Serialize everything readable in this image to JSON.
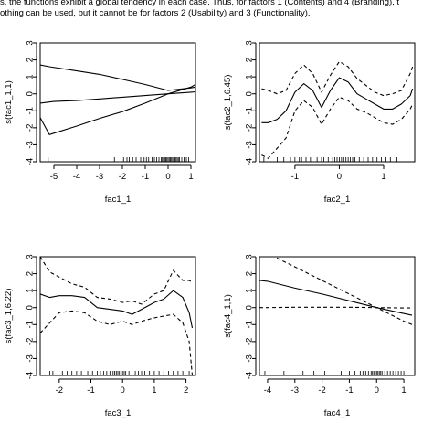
{
  "caption": {
    "line1": "s, the functions exhibit a global tendency in each case. Thus, for factors 1 (Contents) and 4 (Branding), t",
    "line2": "othing can be used, but it cannot be for factors 2 (Usability) and 3 (Functionality)."
  },
  "chart_data": [
    {
      "type": "line",
      "xlabel": "fac1_1",
      "ylabel": "s(fac1_1,1)",
      "xlim": [
        -5.6,
        1.2
      ],
      "ylim": [
        -4,
        3
      ],
      "xticks": [
        -5,
        -4,
        -3,
        -2,
        -1,
        0,
        1
      ],
      "yticks": [
        -4,
        -3,
        -2,
        -1,
        0,
        1,
        2,
        3
      ],
      "series": [
        {
          "style": "solid",
          "x": [
            -5.6,
            -5.2,
            -4,
            -3,
            -2,
            -1,
            0,
            1,
            1.2
          ],
          "y": [
            1.7,
            1.6,
            1.35,
            1.15,
            0.85,
            0.55,
            0.2,
            0.35,
            0.4
          ]
        },
        {
          "style": "solid",
          "x": [
            -5.6,
            -5.2,
            -4,
            -3,
            -2,
            -1,
            0,
            1,
            1.2
          ],
          "y": [
            -1.4,
            -2.4,
            -1.9,
            -1.45,
            -1.05,
            -0.55,
            0,
            0.4,
            0.55
          ]
        },
        {
          "style": "solid",
          "x": [
            -5.6,
            -5,
            -4,
            -3,
            -2,
            -1,
            0,
            1,
            1.2
          ],
          "y": [
            -0.55,
            -0.45,
            -0.4,
            -0.3,
            -0.2,
            -0.1,
            0,
            0.1,
            0.12
          ]
        }
      ],
      "rug": [
        -5.25,
        -2.35,
        -1.95,
        -1.8,
        -1.7,
        -1.55,
        -1.4,
        -1.2,
        -1.05,
        -0.95,
        -0.85,
        -0.7,
        -0.6,
        -0.5,
        -0.4,
        -0.3,
        -0.25,
        -0.2,
        -0.15,
        -0.1,
        -0.05,
        0,
        0.05,
        0.1,
        0.15,
        0.2,
        0.25,
        0.3,
        0.35,
        0.4,
        0.45,
        0.5,
        0.6,
        0.7,
        0.8,
        0.9
      ]
    },
    {
      "type": "line",
      "xlabel": "fac2_1",
      "ylabel": "s(fac2_1,6.45)",
      "xlim": [
        -1.8,
        1.7
      ],
      "ylim": [
        -4,
        3
      ],
      "xticks": [
        -1,
        0,
        1
      ],
      "yticks": [
        -4,
        -3,
        -2,
        -1,
        0,
        1,
        2,
        3
      ],
      "series": [
        {
          "style": "dashed",
          "x": [
            -1.75,
            -1.6,
            -1.4,
            -1.2,
            -1.0,
            -0.8,
            -0.6,
            -0.4,
            -0.2,
            0,
            0.2,
            0.4,
            0.6,
            0.8,
            1.0,
            1.2,
            1.4,
            1.6,
            1.65
          ],
          "y": [
            0.3,
            0.2,
            0.0,
            0.2,
            1.2,
            1.7,
            1.2,
            0.1,
            1.1,
            1.9,
            1.6,
            0.9,
            0.5,
            0.1,
            -0.1,
            0.0,
            0.2,
            1.2,
            1.6
          ]
        },
        {
          "style": "dashed",
          "x": [
            -1.75,
            -1.6,
            -1.4,
            -1.2,
            -1.0,
            -0.8,
            -0.6,
            -0.4,
            -0.2,
            0,
            0.2,
            0.4,
            0.6,
            0.8,
            1.0,
            1.2,
            1.4,
            1.6,
            1.65
          ],
          "y": [
            -3.6,
            -3.8,
            -3.2,
            -2.6,
            -1.0,
            -0.4,
            -0.8,
            -1.8,
            -0.9,
            -0.2,
            -0.4,
            -0.9,
            -1.1,
            -1.4,
            -1.7,
            -1.8,
            -1.5,
            -0.9,
            -0.6
          ]
        },
        {
          "style": "solid",
          "x": [
            -1.75,
            -1.6,
            -1.4,
            -1.2,
            -1.0,
            -0.8,
            -0.6,
            -0.4,
            -0.2,
            0,
            0.2,
            0.4,
            0.6,
            0.8,
            1.0,
            1.2,
            1.4,
            1.6,
            1.65
          ],
          "y": [
            -1.7,
            -1.7,
            -1.5,
            -1.0,
            0.1,
            0.6,
            0.2,
            -0.8,
            0.2,
            0.95,
            0.7,
            0.0,
            -0.3,
            -0.6,
            -0.9,
            -0.9,
            -0.6,
            -0.1,
            0.3
          ]
        }
      ],
      "rug": [
        -1.7,
        -1.4,
        -1.25,
        -1.1,
        -1.0,
        -0.9,
        -0.85,
        -0.75,
        -0.65,
        -0.5,
        -0.4,
        -0.35,
        -0.25,
        -0.15,
        -0.1,
        -0.05,
        0,
        0.05,
        0.1,
        0.15,
        0.2,
        0.25,
        0.3,
        0.35,
        0.45,
        0.55,
        0.65,
        0.75,
        0.85,
        0.95,
        1.05,
        1.15,
        1.3
      ]
    },
    {
      "type": "line",
      "xlabel": "fac3_1",
      "ylabel": "s(fac3_1,6.22)",
      "xlim": [
        -2.6,
        2.3
      ],
      "ylim": [
        -4,
        3
      ],
      "xticks": [
        -2,
        -1,
        0,
        1,
        2
      ],
      "yticks": [
        -4,
        -3,
        -2,
        -1,
        0,
        1,
        2,
        3
      ],
      "series": [
        {
          "style": "dashed",
          "x": [
            -2.6,
            -2.3,
            -2.0,
            -1.6,
            -1.2,
            -0.8,
            -0.4,
            0,
            0.3,
            0.6,
            1.0,
            1.3,
            1.6,
            1.9,
            2.1,
            2.2
          ],
          "y": [
            3.0,
            2.1,
            1.8,
            1.4,
            1.2,
            0.6,
            0.5,
            0.3,
            0.4,
            0.2,
            0.8,
            1.0,
            2.2,
            1.6,
            1.6,
            1.5
          ]
        },
        {
          "style": "dashed",
          "x": [
            -2.6,
            -2.3,
            -2.0,
            -1.6,
            -1.2,
            -0.8,
            -0.4,
            0,
            0.3,
            0.6,
            1.0,
            1.3,
            1.6,
            1.9,
            2.1,
            2.2
          ],
          "y": [
            -1.5,
            -0.9,
            -0.3,
            -0.2,
            -0.3,
            -0.8,
            -1.0,
            -0.8,
            -1.0,
            -0.8,
            -0.6,
            -0.5,
            -0.4,
            -0.9,
            -2.0,
            -4.0
          ]
        },
        {
          "style": "solid",
          "x": [
            -2.6,
            -2.3,
            -2.0,
            -1.6,
            -1.2,
            -0.8,
            -0.4,
            0,
            0.3,
            0.6,
            1.0,
            1.3,
            1.6,
            1.9,
            2.1,
            2.2
          ],
          "y": [
            0.8,
            0.6,
            0.7,
            0.7,
            0.6,
            0.0,
            -0.1,
            -0.2,
            -0.4,
            -0.1,
            0.3,
            0.5,
            1.0,
            0.6,
            -0.3,
            -1.2
          ]
        }
      ],
      "rug": [
        -2.3,
        -2.2,
        -1.9,
        -1.75,
        -1.6,
        -1.45,
        -1.3,
        -1.1,
        -0.95,
        -0.8,
        -0.7,
        -0.6,
        -0.5,
        -0.4,
        -0.3,
        -0.25,
        -0.2,
        -0.15,
        -0.1,
        -0.05,
        0,
        0.05,
        0.1,
        0.2,
        0.3,
        0.4,
        0.5,
        0.6,
        0.7,
        0.85,
        1.0,
        1.15,
        1.3,
        1.45,
        1.6,
        1.75,
        1.9,
        2.1
      ]
    },
    {
      "type": "line",
      "xlabel": "fac4_1",
      "ylabel": "s(fac4_1,1)",
      "xlim": [
        -4.3,
        1.4
      ],
      "ylim": [
        -4,
        3
      ],
      "xticks": [
        -4,
        -3,
        -2,
        -1,
        0,
        1
      ],
      "yticks": [
        -4,
        -3,
        -2,
        -1,
        0,
        1,
        2,
        3
      ],
      "series": [
        {
          "style": "dashed",
          "x": [
            -4.3,
            -4.0,
            -3,
            -2,
            -1,
            0,
            1,
            1.3
          ],
          "y": [
            3.0,
            3.2,
            2.4,
            1.6,
            0.8,
            0.0,
            -0.8,
            -1.0
          ]
        },
        {
          "style": "dashed",
          "x": [
            -4.3,
            -4.0,
            -3,
            -2,
            -1,
            0,
            1,
            1.3
          ],
          "y": [
            0.0,
            0.0,
            0.02,
            0.02,
            0.02,
            0.0,
            -0.02,
            -0.02
          ]
        },
        {
          "style": "solid",
          "x": [
            -4.3,
            -4.0,
            -3,
            -2,
            -1,
            0,
            1,
            1.3
          ],
          "y": [
            1.6,
            1.55,
            1.15,
            0.8,
            0.4,
            0.0,
            -0.35,
            -0.45
          ]
        }
      ],
      "rug": [
        -4.1,
        -3.4,
        -2.7,
        -2.3,
        -1.9,
        -1.6,
        -1.3,
        -1.0,
        -0.8,
        -0.6,
        -0.5,
        -0.4,
        -0.3,
        -0.2,
        -0.15,
        -0.1,
        -0.05,
        0,
        0.05,
        0.1,
        0.15,
        0.2,
        0.3,
        0.4,
        0.5,
        0.6,
        0.7,
        0.8,
        0.9,
        1.0
      ]
    }
  ]
}
